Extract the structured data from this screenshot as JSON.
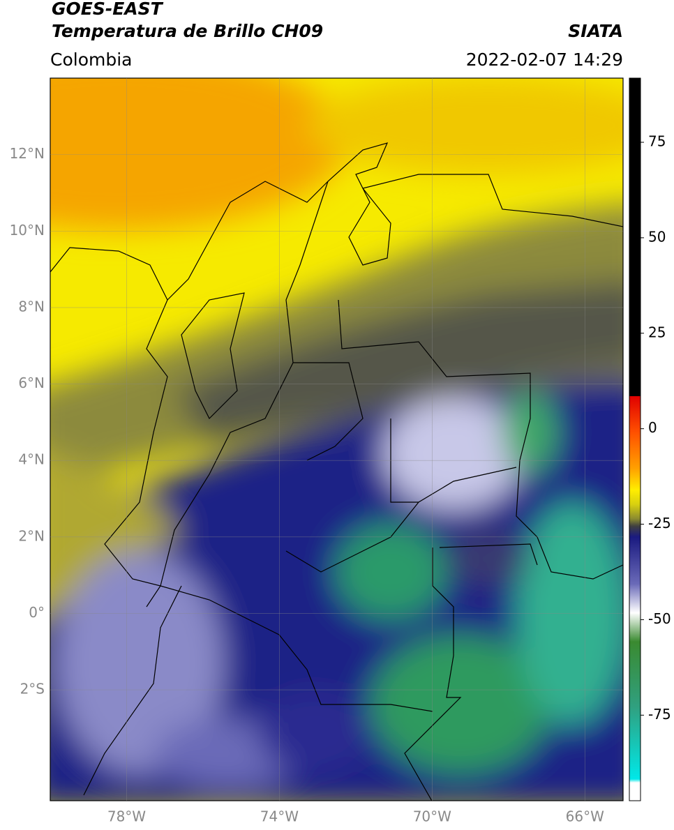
{
  "header": {
    "title": "GOES-EAST",
    "subtitle": "Temperatura de Brillo CH09",
    "source": "SIATA",
    "region": "Colombia",
    "timestamp": "2022-02-07 14:29"
  },
  "map": {
    "xlim": [
      -80,
      -65
    ],
    "ylim": [
      -4.9,
      14
    ],
    "xticks": [
      {
        "value": -78,
        "label": "78°W"
      },
      {
        "value": -74,
        "label": "74°W"
      },
      {
        "value": -70,
        "label": "70°W"
      },
      {
        "value": -66,
        "label": "66°W"
      }
    ],
    "yticks": [
      {
        "value": 12,
        "label": "12°N"
      },
      {
        "value": 10,
        "label": "10°N"
      },
      {
        "value": 8,
        "label": "8°N"
      },
      {
        "value": 6,
        "label": "6°N"
      },
      {
        "value": 4,
        "label": "4°N"
      },
      {
        "value": 2,
        "label": "2°N"
      },
      {
        "value": 0,
        "label": "0°"
      },
      {
        "value": -2,
        "label": "2°S"
      }
    ]
  },
  "colorbar": {
    "lim": [
      -97.4,
      91.8
    ],
    "ticks": [
      75,
      50,
      25,
      0,
      -25,
      -50,
      -75
    ]
  }
}
